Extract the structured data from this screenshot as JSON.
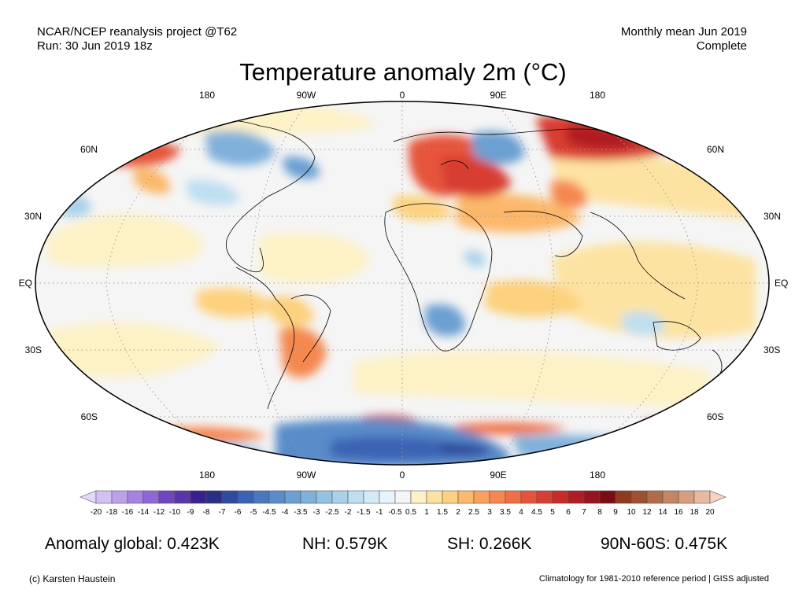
{
  "header": {
    "source_line": "NCAR/NCEP reanalysis project @T62",
    "run_line": "Run: 30 Jun 2019 18z",
    "period_line": "Monthly mean Jun 2019",
    "status_line": "Complete"
  },
  "title": "Temperature anomaly 2m (°C)",
  "map": {
    "projection": "Robinson",
    "top_lon_labels": [
      "180",
      "90W",
      "0",
      "90E",
      "180"
    ],
    "bottom_lon_labels": [
      "180",
      "90W",
      "0",
      "90E",
      "180"
    ],
    "left_lat_labels": [
      "60N",
      "30N",
      "EQ",
      "30S",
      "60S"
    ],
    "right_lat_labels": [
      "60N",
      "30N",
      "EQ",
      "30S",
      "60S"
    ]
  },
  "colorbar": {
    "labels": [
      "-20",
      "-18",
      "-16",
      "-14",
      "-12",
      "-10",
      "-9",
      "-8",
      "-7",
      "-6",
      "-5",
      "-4.5",
      "-4",
      "-3.5",
      "-3",
      "-2.5",
      "-2",
      "-1.5",
      "-1",
      "-0.5",
      "0.5",
      "1",
      "1.5",
      "2",
      "2.5",
      "3",
      "3.5",
      "4",
      "4.5",
      "5",
      "6",
      "7",
      "8",
      "9",
      "10",
      "12",
      "14",
      "16",
      "18",
      "20"
    ],
    "colors": [
      "#e6d9f8",
      "#d4c1f4",
      "#bba0ec",
      "#a583e3",
      "#8e68d6",
      "#7046bf",
      "#5a35a8",
      "#3b1f8c",
      "#2a2f86",
      "#2f4a9e",
      "#3b63b3",
      "#4a78bf",
      "#5a8cc9",
      "#6c9fd2",
      "#80b1da",
      "#95c2e2",
      "#a9d1ea",
      "#bddff1",
      "#d2ebf7",
      "#e6f5fb",
      "#f5f5f5",
      "#fdf1c6",
      "#fde3a2",
      "#fdd17e",
      "#fcb86b",
      "#f9a05b",
      "#f58750",
      "#ef6e45",
      "#e6553b",
      "#d83e33",
      "#c72c2b",
      "#b01c24",
      "#96141d",
      "#7a0c14",
      "#8d3a20",
      "#9e5030",
      "#b16b48",
      "#c48562",
      "#d69e80",
      "#e8b8a0",
      "#f5d2c2"
    ]
  },
  "stats": {
    "global": "Anomaly global: 0.423K",
    "nh": "NH: 0.579K",
    "sh": "SH: 0.266K",
    "arctic": "90N-60S: 0.475K"
  },
  "footer": {
    "credit": "(c) Karsten Haustein",
    "climatology": "Climatology for 1981-2010 reference period | GISS adjusted"
  }
}
